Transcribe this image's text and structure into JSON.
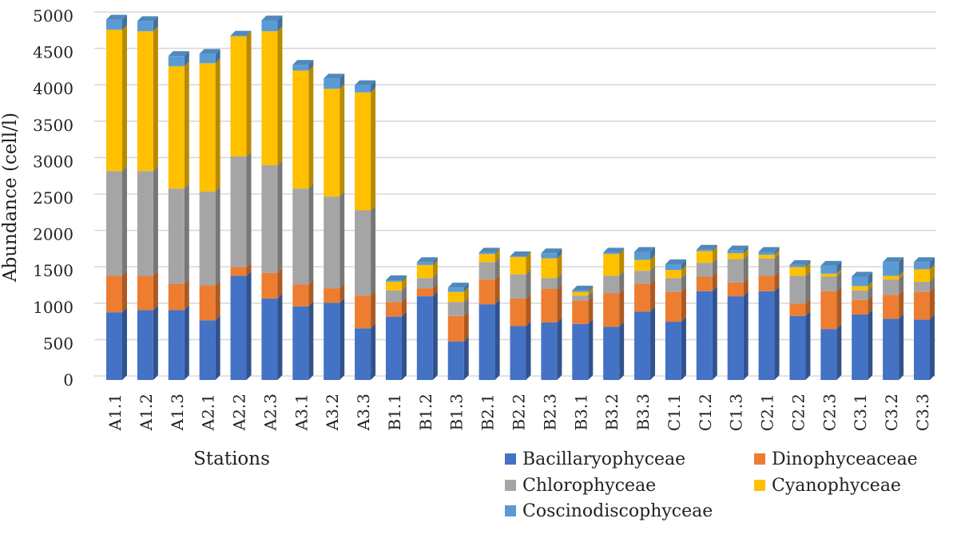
{
  "chart_data": {
    "type": "bar",
    "stacked": true,
    "title": "",
    "xlabel": "Stations",
    "ylabel": "Abundance (cell/l)",
    "ylim": [
      0,
      5000
    ],
    "yticks": [
      0,
      500,
      1000,
      1500,
      2000,
      2500,
      3000,
      3500,
      4000,
      4500,
      5000
    ],
    "grid": true,
    "legend_position": "bottom-right",
    "categories": [
      "A1.1",
      "A1.2",
      "A1.3",
      "A2.1",
      "A2.2",
      "A2.3",
      "A3.1",
      "A3.2",
      "A3.3",
      "B1.1",
      "B1.2",
      "B1.3",
      "B2.1",
      "B2.2",
      "B2.3",
      "B3.1",
      "B3.2",
      "B3.3",
      "C1.1",
      "C1.2",
      "C1.3",
      "C2.1",
      "C2.2",
      "C2.3",
      "C3.1",
      "C3.2",
      "C3.3"
    ],
    "series": [
      {
        "name": "Bacillaryophyceae",
        "color": "#4472c4",
        "values": [
          930,
          960,
          960,
          820,
          1430,
          1120,
          1010,
          1060,
          710,
          870,
          1150,
          530,
          1040,
          740,
          790,
          770,
          730,
          940,
          800,
          1220,
          1150,
          1220,
          880,
          700,
          900,
          840,
          830
        ]
      },
      {
        "name": "Dinophyceaceae",
        "color": "#ed7d31",
        "values": [
          500,
          470,
          360,
          480,
          120,
          350,
          300,
          200,
          450,
          200,
          110,
          350,
          340,
          380,
          460,
          320,
          460,
          380,
          410,
          200,
          190,
          210,
          170,
          520,
          200,
          330,
          380
        ]
      },
      {
        "name": "Chlorophyceae",
        "color": "#a5a5a5",
        "values": [
          1440,
          1440,
          1310,
          1290,
          1520,
          1480,
          1320,
          1260,
          1170,
          160,
          140,
          190,
          240,
          330,
          150,
          70,
          240,
          180,
          190,
          190,
          320,
          240,
          380,
          200,
          130,
          210,
          140
        ]
      },
      {
        "name": "Cyanophyceae",
        "color": "#ffc000",
        "values": [
          1940,
          1920,
          1680,
          1760,
          1650,
          1840,
          1620,
          1480,
          1620,
          120,
          180,
          140,
          110,
          240,
          270,
          50,
          300,
          150,
          110,
          160,
          80,
          50,
          120,
          40,
          60,
          50,
          170
        ]
      },
      {
        "name": "Coscinodiscophyceae",
        "color": "#5b9bd5",
        "values": [
          140,
          140,
          140,
          130,
          10,
          150,
          80,
          140,
          100,
          20,
          40,
          60,
          20,
          10,
          70,
          20,
          20,
          110,
          80,
          20,
          40,
          40,
          30,
          110,
          130,
          190,
          100
        ]
      }
    ]
  }
}
